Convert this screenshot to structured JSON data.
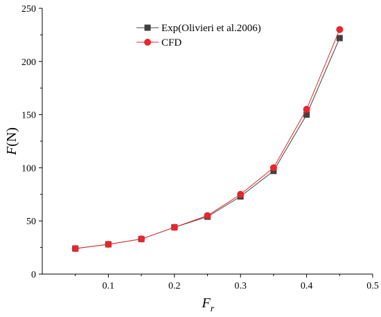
{
  "chart_data": {
    "type": "line",
    "title": "",
    "xlabel": {
      "main": "F",
      "sub": "r"
    },
    "ylabel": {
      "main": "F",
      "unit": "(N)"
    },
    "xlim": [
      0.0,
      0.5
    ],
    "ylim": [
      0,
      250
    ],
    "x_ticks": [
      0.1,
      0.2,
      0.3,
      0.4,
      0.5
    ],
    "x_tick_labels": [
      "0.1",
      "0.2",
      "0.3",
      "0.4",
      "0.5"
    ],
    "y_ticks": [
      0,
      50,
      100,
      150,
      200,
      250
    ],
    "y_tick_labels": [
      "0",
      "50",
      "100",
      "150",
      "200",
      "250"
    ],
    "grid": false,
    "legend_position": "top-center",
    "series": [
      {
        "name": "Exp(Olivieri et al.2006)",
        "marker": "square",
        "color": "#404040",
        "x": [
          0.05,
          0.1,
          0.15,
          0.2,
          0.25,
          0.3,
          0.35,
          0.4,
          0.45
        ],
        "y": [
          24,
          28,
          33,
          44,
          54,
          73,
          97,
          150,
          222
        ]
      },
      {
        "name": "CFD",
        "marker": "circle",
        "color": "#e8262b",
        "x": [
          0.05,
          0.1,
          0.15,
          0.2,
          0.25,
          0.3,
          0.35,
          0.4,
          0.45
        ],
        "y": [
          24,
          28,
          33,
          44,
          55,
          75,
          100,
          155,
          230
        ]
      }
    ]
  }
}
